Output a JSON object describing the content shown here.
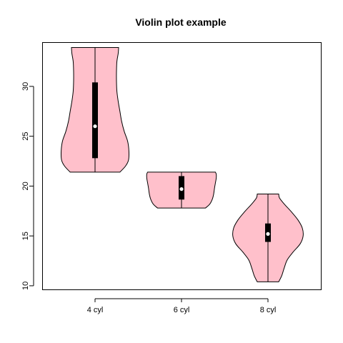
{
  "chart_data": {
    "type": "violin",
    "title": "Violin plot example",
    "xlabel": "",
    "ylabel": "",
    "categories": [
      "4 cyl",
      "6 cyl",
      "8 cyl"
    ],
    "yticks": [
      10,
      15,
      20,
      25,
      30
    ],
    "ylim": [
      9.6,
      34.4
    ],
    "grid": false,
    "fill_color": "#ffc0cb",
    "outline_color": "#000000",
    "box_color": "#000000",
    "median_color": "#ffffff",
    "groups": [
      {
        "name": "4 cyl",
        "min": 21.4,
        "max": 33.9,
        "q1": 22.8,
        "q3": 30.4,
        "median": 26.0,
        "density": [
          [
            21.4,
            0.58
          ],
          [
            22.0,
            0.71
          ],
          [
            22.6,
            0.78
          ],
          [
            23.5,
            0.79
          ],
          [
            24.5,
            0.76
          ],
          [
            25.5,
            0.68
          ],
          [
            26.5,
            0.62
          ],
          [
            27.5,
            0.58
          ],
          [
            28.5,
            0.54
          ],
          [
            29.5,
            0.51
          ],
          [
            30.5,
            0.5
          ],
          [
            31.5,
            0.5
          ],
          [
            32.5,
            0.51
          ],
          [
            33.3,
            0.54
          ],
          [
            33.9,
            0.55
          ]
        ]
      },
      {
        "name": "6 cyl",
        "min": 17.8,
        "max": 21.4,
        "q1": 18.65,
        "q3": 21.0,
        "median": 19.7,
        "density": [
          [
            17.8,
            0.56
          ],
          [
            18.2,
            0.66
          ],
          [
            18.7,
            0.72
          ],
          [
            19.2,
            0.75
          ],
          [
            19.8,
            0.77
          ],
          [
            20.3,
            0.79
          ],
          [
            20.8,
            0.81
          ],
          [
            21.2,
            0.81
          ],
          [
            21.4,
            0.79
          ]
        ]
      },
      {
        "name": "8 cyl",
        "min": 10.4,
        "max": 19.2,
        "q1": 14.4,
        "q3": 16.25,
        "median": 15.2,
        "density": [
          [
            10.4,
            0.25
          ],
          [
            11.0,
            0.32
          ],
          [
            11.8,
            0.38
          ],
          [
            12.6,
            0.45
          ],
          [
            13.4,
            0.59
          ],
          [
            14.2,
            0.75
          ],
          [
            15.0,
            0.82
          ],
          [
            15.8,
            0.8
          ],
          [
            16.6,
            0.7
          ],
          [
            17.4,
            0.55
          ],
          [
            18.2,
            0.38
          ],
          [
            18.8,
            0.27
          ],
          [
            19.2,
            0.25
          ]
        ]
      }
    ]
  }
}
